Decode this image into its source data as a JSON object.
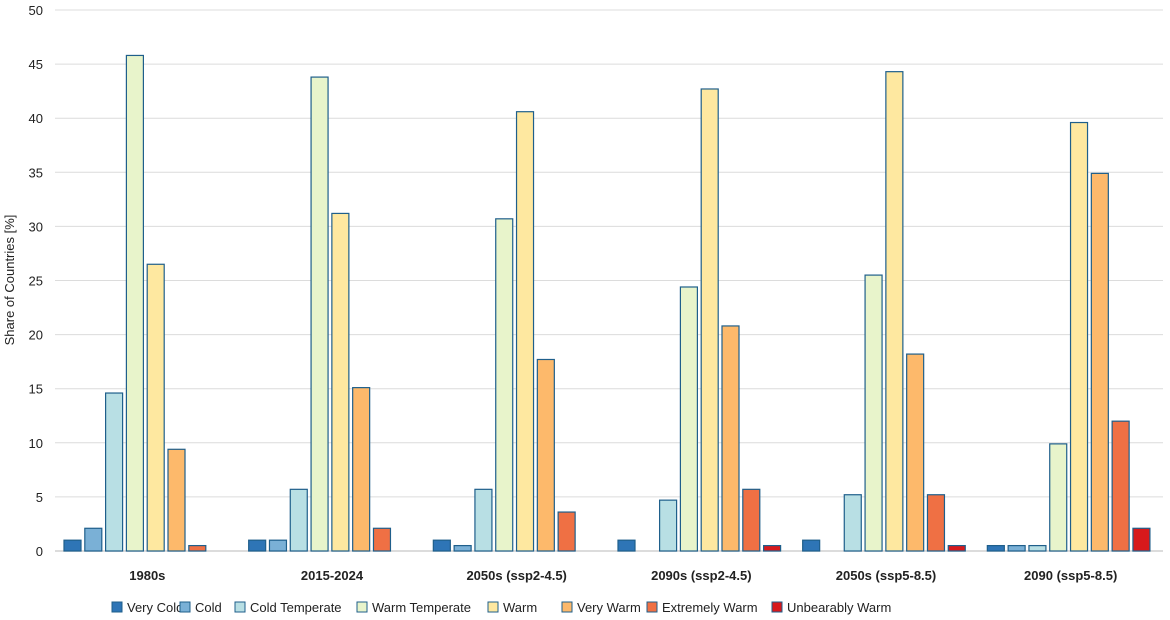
{
  "chart_data": {
    "type": "bar",
    "title": "",
    "xlabel": "",
    "ylabel": "Share of Countries [%]",
    "ylim": [
      0,
      50
    ],
    "yticks": [
      0,
      5,
      10,
      15,
      20,
      25,
      30,
      35,
      40,
      45,
      50
    ],
    "grid": true,
    "legend_position": "bottom",
    "categories": [
      "1980s",
      "2015-2024",
      "2050s (ssp2-4.5)",
      "2090s (ssp2-4.5)",
      "2050s (ssp5-8.5)",
      "2090 (ssp5-8.5)"
    ],
    "series": [
      {
        "name": "Very Cold",
        "color": "#2e75b6",
        "values": [
          1.0,
          1.0,
          1.0,
          1.0,
          1.0,
          0.5
        ]
      },
      {
        "name": "Cold",
        "color": "#7ab0d6",
        "values": [
          2.1,
          1.0,
          0.5,
          0,
          0,
          0.5
        ]
      },
      {
        "name": "Cold Temperate",
        "color": "#b8dfe4",
        "values": [
          14.6,
          5.7,
          5.7,
          4.7,
          5.2,
          0.5
        ]
      },
      {
        "name": "Warm Temperate",
        "color": "#e8f4cb",
        "values": [
          45.8,
          43.8,
          30.7,
          24.4,
          25.5,
          9.9
        ]
      },
      {
        "name": "Warm",
        "color": "#fee8a0",
        "values": [
          26.5,
          31.2,
          40.6,
          42.7,
          44.3,
          39.6
        ]
      },
      {
        "name": "Very Warm",
        "color": "#fdb96b",
        "values": [
          9.4,
          15.1,
          17.7,
          20.8,
          18.2,
          34.9
        ]
      },
      {
        "name": "Extremely Warm",
        "color": "#ef7044",
        "values": [
          0.5,
          2.1,
          3.6,
          5.7,
          5.2,
          12.0
        ]
      },
      {
        "name": "Unbearably Warm",
        "color": "#d7191c",
        "values": [
          0,
          0,
          0,
          0.5,
          0.5,
          2.1
        ]
      }
    ]
  }
}
